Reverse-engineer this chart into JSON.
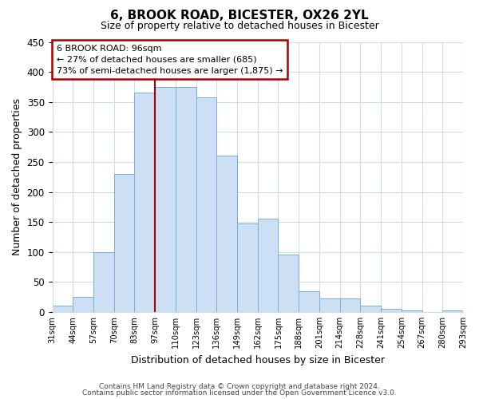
{
  "title": "6, BROOK ROAD, BICESTER, OX26 2YL",
  "subtitle": "Size of property relative to detached houses in Bicester",
  "xlabel": "Distribution of detached houses by size in Bicester",
  "ylabel": "Number of detached properties",
  "bar_labels": [
    "31sqm",
    "44sqm",
    "57sqm",
    "70sqm",
    "83sqm",
    "97sqm",
    "110sqm",
    "123sqm",
    "136sqm",
    "149sqm",
    "162sqm",
    "175sqm",
    "188sqm",
    "201sqm",
    "214sqm",
    "228sqm",
    "241sqm",
    "254sqm",
    "267sqm",
    "280sqm",
    "293sqm"
  ],
  "bar_values": [
    10,
    25,
    100,
    230,
    365,
    375,
    375,
    357,
    260,
    148,
    155,
    95,
    35,
    22,
    22,
    10,
    5,
    3,
    0,
    3
  ],
  "bar_color": "#ccdff5",
  "bar_edgecolor": "#7aafd4",
  "vline_x": 5,
  "vline_color": "#aa0000",
  "ylim": [
    0,
    450
  ],
  "yticks": [
    0,
    50,
    100,
    150,
    200,
    250,
    300,
    350,
    400,
    450
  ],
  "ann_line1": "6 BROOK ROAD: 96sqm",
  "ann_line2": "← 27% of detached houses are smaller (685)",
  "ann_line3": "73% of semi-detached houses are larger (1,875) →",
  "footer1": "Contains HM Land Registry data © Crown copyright and database right 2024.",
  "footer2": "Contains public sector information licensed under the Open Government Licence v3.0.",
  "background_color": "#ffffff",
  "grid_color": "#d0dce8"
}
